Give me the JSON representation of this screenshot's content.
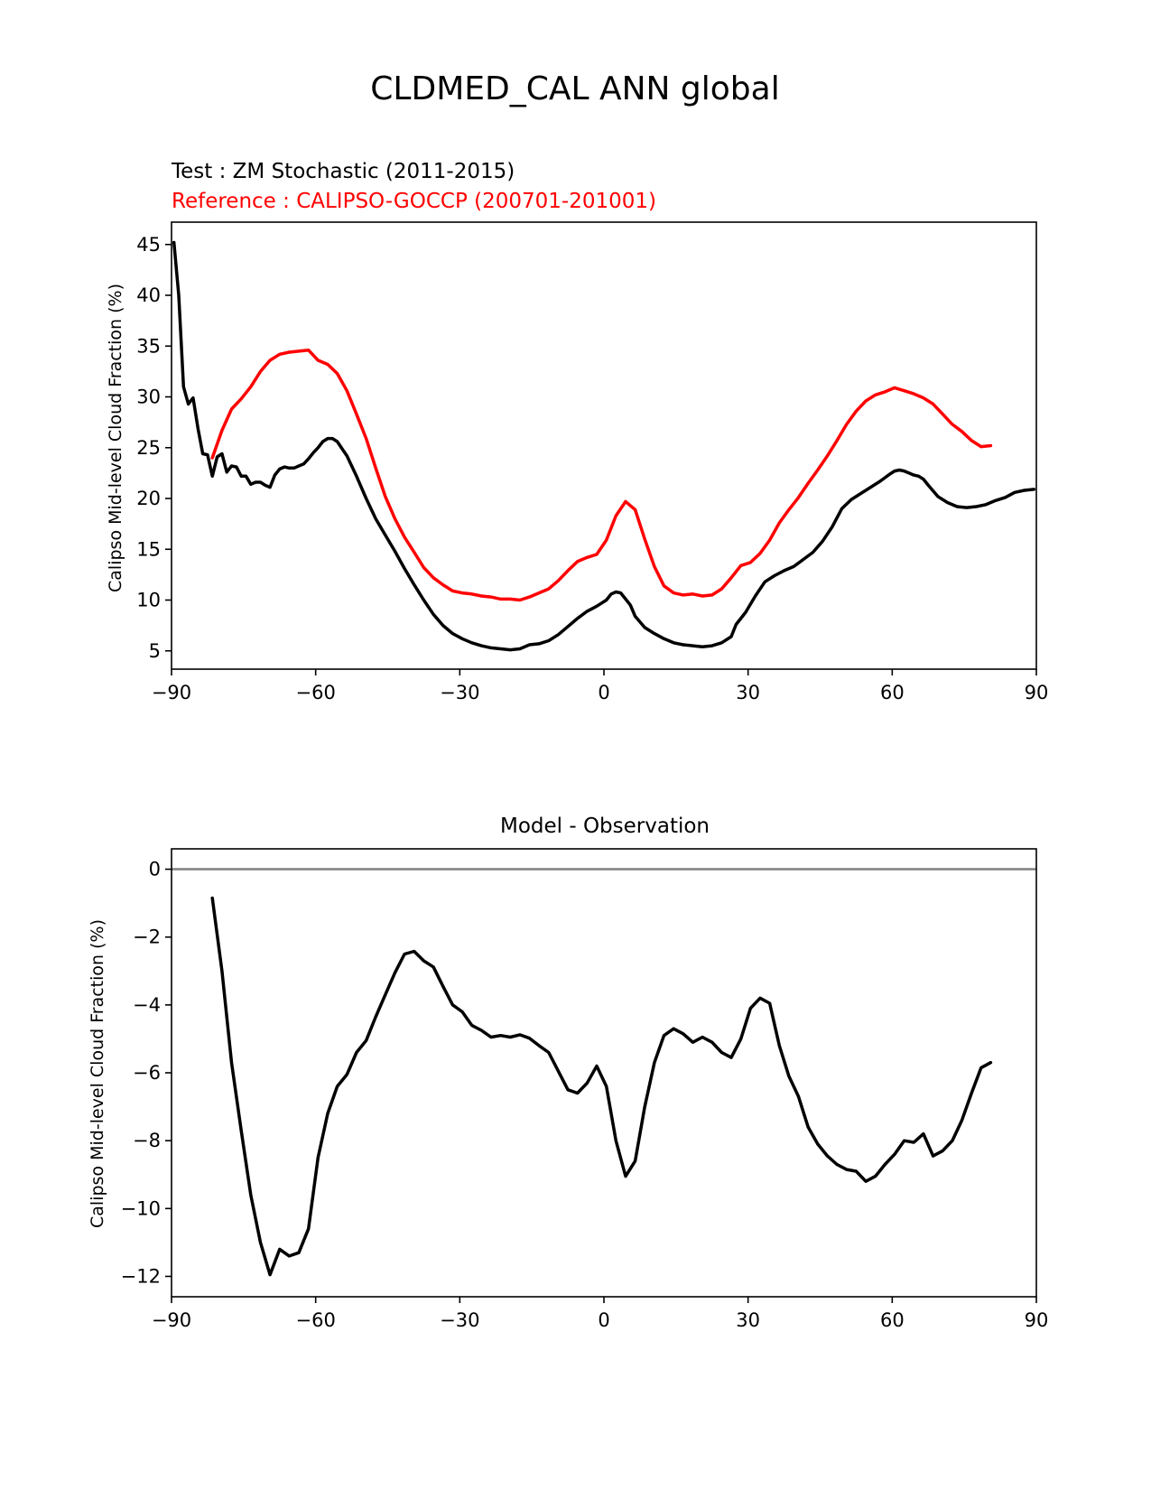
{
  "figure": {
    "title": "CLDMED_CAL ANN global"
  },
  "chart_data": [
    {
      "type": "line",
      "test_label": "Test : ZM Stochastic (2011-2015)",
      "reference_label": "Reference : CALIPSO-GOCCP (200701-201001)",
      "title": "",
      "xlabel": "",
      "ylabel": "Calipso Mid-level Cloud Fraction (%)",
      "xlim": [
        -90,
        90
      ],
      "ylim": [
        3.2,
        47.2
      ],
      "xticks": [
        -90,
        -60,
        -30,
        0,
        30,
        60,
        90
      ],
      "xtick_labels": [
        "−90",
        "−60",
        "−30",
        "0",
        "30",
        "60",
        "90"
      ],
      "yticks": [
        5,
        10,
        15,
        20,
        25,
        30,
        35,
        40,
        45
      ],
      "ytick_labels": [
        "5",
        "10",
        "15",
        "20",
        "25",
        "30",
        "35",
        "40",
        "45"
      ],
      "grid": false,
      "series": [
        {
          "role": "test",
          "color": "#000000",
          "x": [
            -89.5,
            -88.5,
            -87.5,
            -86.5,
            -85.5,
            -84.5,
            -83.5,
            -82.5,
            -81.5,
            -80.5,
            -79.5,
            -78.5,
            -77.5,
            -76.5,
            -75.5,
            -74.5,
            -73.5,
            -72.5,
            -71.5,
            -70.5,
            -69.5,
            -68.5,
            -67.5,
            -66.5,
            -65.5,
            -64.5,
            -63.5,
            -62.5,
            -61.5,
            -60.5,
            -59.5,
            -58.5,
            -57.5,
            -56.5,
            -55.5,
            -54.5,
            -53.5,
            -51.5,
            -49.5,
            -47.5,
            -45.5,
            -43.5,
            -41.5,
            -39.5,
            -37.5,
            -35.5,
            -33.5,
            -31.5,
            -29.5,
            -27.5,
            -25.5,
            -23.5,
            -21.5,
            -19.5,
            -17.5,
            -15.5,
            -13.5,
            -11.5,
            -9.5,
            -7.5,
            -5.5,
            -3.5,
            -1.5,
            0.5,
            1.5,
            2.5,
            3.5,
            4.5,
            5.5,
            6.5,
            8.5,
            10.5,
            12.5,
            14.5,
            16.5,
            18.5,
            20.5,
            22.5,
            24.5,
            26.5,
            27.5,
            29.5,
            31.5,
            33.5,
            35.5,
            37.5,
            39.5,
            41.5,
            43.5,
            45.5,
            47.5,
            49.5,
            51.5,
            53.5,
            55.5,
            57.5,
            59.5,
            60.5,
            61.5,
            62.5,
            63.5,
            64.5,
            65.5,
            66.5,
            67.5,
            69.5,
            71.5,
            73.5,
            75.5,
            77.5,
            79.5,
            81.5,
            83.5,
            85.5,
            87.5,
            89.5
          ],
          "values": [
            45.2,
            40.0,
            31.0,
            29.3,
            29.9,
            26.9,
            24.4,
            24.3,
            22.2,
            24.1,
            24.4,
            22.6,
            23.2,
            23.1,
            22.2,
            22.2,
            21.4,
            21.6,
            21.6,
            21.3,
            21.1,
            22.3,
            22.9,
            23.1,
            23.0,
            23.0,
            23.2,
            23.4,
            23.9,
            24.5,
            25.0,
            25.6,
            25.9,
            25.9,
            25.6,
            24.9,
            24.2,
            22.2,
            20.0,
            18.0,
            16.4,
            14.8,
            13.1,
            11.5,
            10.0,
            8.6,
            7.5,
            6.7,
            6.2,
            5.8,
            5.5,
            5.3,
            5.2,
            5.1,
            5.2,
            5.6,
            5.7,
            6.0,
            6.6,
            7.4,
            8.2,
            8.9,
            9.4,
            10.0,
            10.6,
            10.8,
            10.7,
            10.1,
            9.5,
            8.4,
            7.3,
            6.7,
            6.2,
            5.8,
            5.6,
            5.5,
            5.4,
            5.5,
            5.8,
            6.4,
            7.6,
            8.8,
            10.4,
            11.8,
            12.4,
            12.9,
            13.3,
            14.0,
            14.7,
            15.8,
            17.2,
            19.0,
            19.9,
            20.5,
            21.1,
            21.7,
            22.4,
            22.7,
            22.8,
            22.7,
            22.5,
            22.3,
            22.2,
            21.9,
            21.3,
            20.2,
            19.6,
            19.2,
            19.1,
            19.2,
            19.4,
            19.8,
            20.1,
            20.6,
            20.8,
            20.9
          ]
        },
        {
          "role": "reference",
          "color": "#ff0000",
          "x": [
            -81.5,
            -79.5,
            -77.5,
            -75.5,
            -73.5,
            -71.5,
            -69.5,
            -67.5,
            -65.5,
            -63.5,
            -61.5,
            -59.5,
            -57.5,
            -55.5,
            -53.5,
            -51.5,
            -49.5,
            -47.5,
            -45.5,
            -43.5,
            -41.5,
            -39.5,
            -37.5,
            -35.5,
            -33.5,
            -31.5,
            -29.5,
            -27.5,
            -25.5,
            -23.5,
            -21.5,
            -19.5,
            -17.5,
            -15.5,
            -13.5,
            -11.5,
            -9.5,
            -7.5,
            -5.5,
            -3.5,
            -1.5,
            0.5,
            2.5,
            4.5,
            6.5,
            8.5,
            10.5,
            12.5,
            14.5,
            16.5,
            18.5,
            20.5,
            22.5,
            24.5,
            26.5,
            28.5,
            30.5,
            32.5,
            34.5,
            36.5,
            38.5,
            40.5,
            42.5,
            44.5,
            46.5,
            48.5,
            50.5,
            52.5,
            54.5,
            56.5,
            58.5,
            60.5,
            62.5,
            64.5,
            66.5,
            68.5,
            70.5,
            72.5,
            74.5,
            76.5,
            78.5,
            80.5
          ],
          "values": [
            24.0,
            26.7,
            28.8,
            29.8,
            31.0,
            32.5,
            33.6,
            34.2,
            34.4,
            34.5,
            34.6,
            33.6,
            33.2,
            32.3,
            30.6,
            28.3,
            25.9,
            23.0,
            20.2,
            18.0,
            16.2,
            14.7,
            13.2,
            12.2,
            11.5,
            10.9,
            10.7,
            10.6,
            10.4,
            10.3,
            10.1,
            10.1,
            10.0,
            10.3,
            10.7,
            11.1,
            11.9,
            12.9,
            13.8,
            14.2,
            14.5,
            15.9,
            18.3,
            19.7,
            18.9,
            16.0,
            13.3,
            11.4,
            10.7,
            10.5,
            10.6,
            10.4,
            10.5,
            11.1,
            12.2,
            13.4,
            13.7,
            14.6,
            15.9,
            17.6,
            18.9,
            20.1,
            21.5,
            22.8,
            24.2,
            25.7,
            27.3,
            28.6,
            29.6,
            30.2,
            30.5,
            30.9,
            30.6,
            30.3,
            29.9,
            29.3,
            28.3,
            27.3,
            26.6,
            25.7,
            25.1,
            25.2
          ]
        }
      ]
    },
    {
      "type": "line",
      "title": "Model - Observation",
      "xlabel": "",
      "ylabel": "Calipso Mid-level Cloud Fraction (%)",
      "xlim": [
        -90,
        90
      ],
      "ylim": [
        -12.6,
        0.6
      ],
      "xticks": [
        -90,
        -60,
        -30,
        0,
        30,
        60,
        90
      ],
      "xtick_labels": [
        "−90",
        "−60",
        "−30",
        "0",
        "30",
        "60",
        "90"
      ],
      "yticks": [
        0,
        -2,
        -4,
        -6,
        -8,
        -10,
        -12
      ],
      "ytick_labels": [
        "0",
        "−2",
        "−4",
        "−6",
        "−8",
        "−10",
        "−12"
      ],
      "grid": false,
      "zero_line": {
        "value": 0,
        "color": "#808080"
      },
      "series": [
        {
          "role": "difference",
          "color": "#000000",
          "x": [
            -81.5,
            -79.5,
            -77.5,
            -75.5,
            -73.5,
            -71.5,
            -69.5,
            -67.5,
            -65.5,
            -63.5,
            -61.5,
            -59.5,
            -57.5,
            -55.5,
            -53.5,
            -51.5,
            -49.5,
            -47.5,
            -45.5,
            -43.5,
            -41.5,
            -39.5,
            -37.5,
            -35.5,
            -33.5,
            -31.5,
            -29.5,
            -27.5,
            -25.5,
            -23.5,
            -21.5,
            -19.5,
            -17.5,
            -15.5,
            -13.5,
            -11.5,
            -9.5,
            -7.5,
            -5.5,
            -3.5,
            -1.5,
            0.5,
            2.5,
            4.5,
            6.5,
            8.5,
            10.5,
            12.5,
            14.5,
            16.5,
            18.5,
            20.5,
            22.5,
            24.5,
            26.5,
            28.5,
            30.5,
            32.5,
            34.5,
            36.5,
            38.5,
            40.5,
            42.5,
            44.5,
            46.5,
            48.5,
            50.5,
            52.5,
            54.5,
            56.5,
            58.5,
            60.5,
            62.5,
            64.5,
            66.5,
            68.5,
            70.5,
            72.5,
            74.5,
            76.5,
            78.5,
            80.5
          ],
          "values": [
            -0.85,
            -3.0,
            -5.7,
            -7.7,
            -9.6,
            -11.0,
            -11.95,
            -11.2,
            -11.4,
            -11.3,
            -10.6,
            -8.5,
            -7.2,
            -6.4,
            -6.05,
            -5.4,
            -5.05,
            -4.35,
            -3.7,
            -3.05,
            -2.5,
            -2.42,
            -2.7,
            -2.88,
            -3.45,
            -4.0,
            -4.2,
            -4.6,
            -4.75,
            -4.95,
            -4.9,
            -4.95,
            -4.88,
            -4.98,
            -5.2,
            -5.4,
            -5.95,
            -6.5,
            -6.6,
            -6.3,
            -5.8,
            -6.4,
            -8.0,
            -9.05,
            -8.6,
            -7.0,
            -5.7,
            -4.9,
            -4.7,
            -4.85,
            -5.1,
            -4.95,
            -5.1,
            -5.4,
            -5.55,
            -5.0,
            -4.1,
            -3.8,
            -3.95,
            -5.2,
            -6.1,
            -6.7,
            -7.6,
            -8.1,
            -8.45,
            -8.7,
            -8.85,
            -8.9,
            -9.2,
            -9.05,
            -8.7,
            -8.4,
            -8.0,
            -8.05,
            -7.8,
            -8.45,
            -8.3,
            -8.0,
            -7.4,
            -6.6,
            -5.85,
            -5.7
          ]
        }
      ]
    }
  ]
}
